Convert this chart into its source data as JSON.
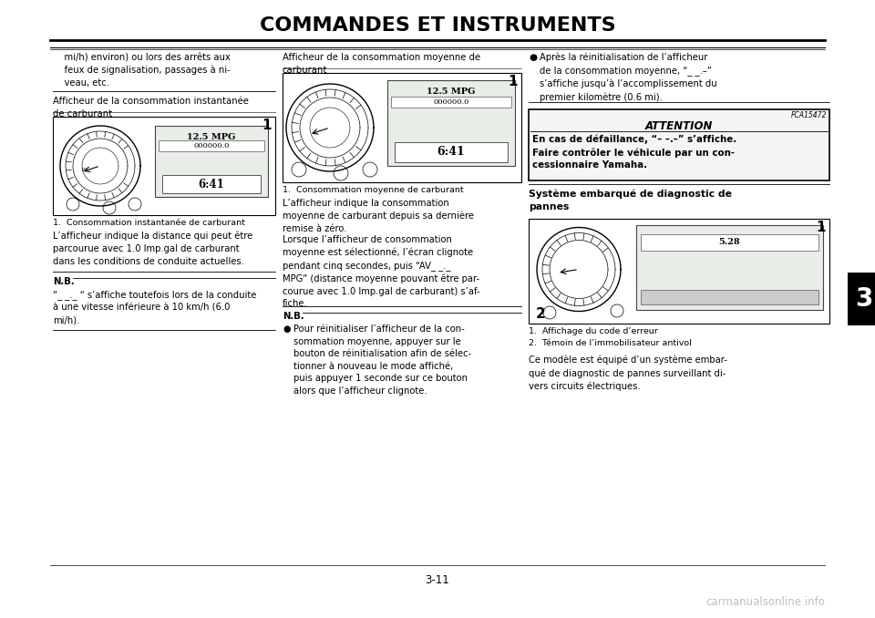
{
  "title": "COMMANDES ET INSTRUMENTS",
  "page_number": "3-11",
  "chapter_number": "3",
  "background_color": "#ffffff",
  "col1_intro": "    mi/h) environ) ou lors des arrêts aux\n    feux de signalisation, passages à ni-\n    veau, etc.",
  "col1_heading1": "Afficheur de la consommation instantanée\nde carburant",
  "col1_caption1": "1.  Consommation instantanée de carburant",
  "col1_para1": "L’afficheur indique la distance qui peut être\nparcourue avec 1.0 lmp.gal de carburant\ndans les conditions de conduite actuelles.",
  "col1_nb_title": "N.B.",
  "col1_nb_text": "“_ _._ “ s’affiche toutefois lors de la conduite\nà une vitesse inférieure à 10 km/h (6.0\nmi/h).",
  "col2_heading1": "Afficheur de la consommation moyenne de\ncarburant",
  "col2_caption1": "1.  Consommation moyenne de carburant",
  "col2_para1": "L’afficheur indique la consommation\nmoyenne de carburant depuis sa dernière\nremise à zéro.",
  "col2_para2": "Lorsque l’afficheur de consommation\nmoyenne est sélectionné, l’écran clignote\npendant cinq secondes, puis “AV_ _._\nMPG” (distance moyenne pouvant être par-\ncourue avec 1.0 lmp.gal de carburant) s’af-\nfiche.",
  "col2_nb_title": "N.B.",
  "col2_nb_text": "Pour réinitialiser l’afficheur de la con-\nsommation moyenne, appuyer sur le\nbouton de réinitialisation afin de sélec-\ntionner à nouveau le mode affiché,\npuis appuyer 1 seconde sur ce bouton\nalors que l’afficheur clignote.",
  "col3_bullet1": "Après la réinitialisation de l’afficheur\nde la consommation moyenne, “_ _.–”\ns’affiche jusqu’à l’accomplissement du\npremier kilomètre (0.6 mi).",
  "attention_title": "ATTENTION",
  "attention_ref": "FCA15472",
  "attention_text_bold": "En cas de défaillance, “– –.–” s’affiche.\nFaire contrôler le véhicule par un con-\ncessionnaire Yamaha.",
  "col3_heading2": "Système embarqué de diagnostic de\npannes",
  "col3_caption1": "1.  Affichage du code d’erreur",
  "col3_caption2": "2.  Témoin de l’immobilisateur antivol",
  "col3_para1": "Ce modèle est équipé d’un système embar-\nqué de diagnostic de pannes surveillant di-\nvers circuits électriques."
}
